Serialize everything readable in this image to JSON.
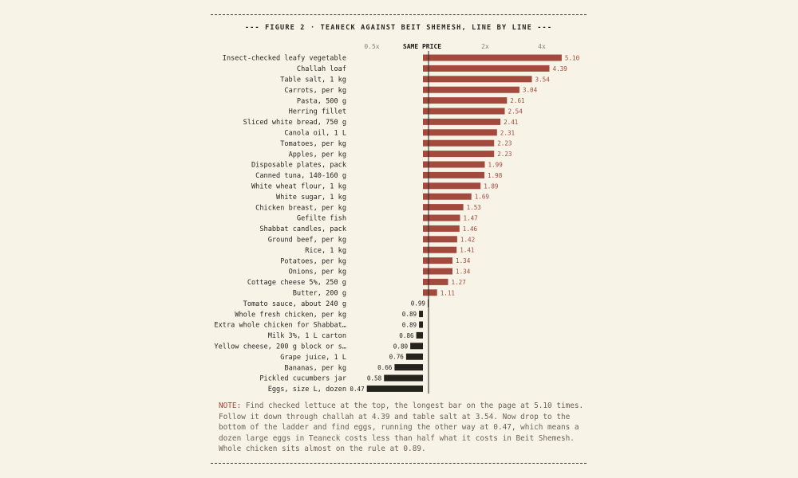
{
  "colors": {
    "background": "#f7f3e6",
    "above_bar": "#a34a3e",
    "below_bar": "#26221d",
    "above_label": "#a34a3e",
    "below_label": "#26221d",
    "text": "#2a2520",
    "note_text": "#6b6258",
    "note_lead": "#a8453a"
  },
  "title": "--- FIGURE 2 · TEANECK AGAINST BEIT SHEMESH, LINE BY LINE ---",
  "note": {
    "lead": "NOTE:",
    "text": " Find checked lettuce at the top, the longest bar on the page at 5.10 times. Follow it down through challah at 4.39 and table salt at 3.54. Now drop to the bottom of the ladder and find eggs, running the other way at 0.47, which means a dozen large eggs in Teaneck costs less than half what it costs in Beit Shemesh. Whole chicken sits almost on the rule at 0.89."
  },
  "chart_data": {
    "type": "bar",
    "orientation": "horizontal",
    "scale": "log2",
    "reference_value": 1,
    "xlim": [
      0.44,
      6
    ],
    "tick_labels": [
      {
        "value": 0.5,
        "label": "0.5x",
        "bold": false
      },
      {
        "value": 1,
        "label": "SAME PRICE",
        "bold": true
      },
      {
        "value": 2,
        "label": "2x",
        "bold": false
      },
      {
        "value": 4,
        "label": "4x",
        "bold": false
      }
    ],
    "categories": [
      "Insect-checked leafy vegetable",
      "Challah loaf",
      "Table salt, 1 kg",
      "Carrots, per kg",
      "Pasta, 500 g",
      "Herring fillet",
      "Sliced white bread, 750 g",
      "Canola oil, 1 L",
      "Tomatoes, per kg",
      "Apples, per kg",
      "Disposable plates, pack",
      "Canned tuna, 140-160 g",
      "White wheat flour, 1 kg",
      "White sugar, 1 kg",
      "Chicken breast, per kg",
      "Gefilte fish",
      "Shabbat candles, pack",
      "Ground beef, per kg",
      "Rice, 1 kg",
      "Potatoes, per kg",
      "Onions, per kg",
      "Cottage cheese 5%, 250 g",
      "Butter, 200 g",
      "Tomato sauce, about 240 g",
      "Whole fresh chicken, per kg",
      "Extra whole chicken for Shabbat…",
      "Milk 3%, 1 L carton",
      "Yellow cheese, 200 g block or s…",
      "Grape juice, 1 L",
      "Bananas, per kg",
      "Pickled cucumbers jar",
      "Eggs, size L, dozen"
    ],
    "values": [
      5.1,
      4.39,
      3.54,
      3.04,
      2.61,
      2.54,
      2.41,
      2.31,
      2.23,
      2.23,
      1.99,
      1.98,
      1.89,
      1.69,
      1.53,
      1.47,
      1.46,
      1.42,
      1.41,
      1.34,
      1.34,
      1.27,
      1.11,
      0.99,
      0.89,
      0.89,
      0.86,
      0.8,
      0.76,
      0.66,
      0.58,
      0.47
    ],
    "value_labels": [
      "5.10",
      "4.39",
      "3.54",
      "3.04",
      "2.61",
      "2.54",
      "2.41",
      "2.31",
      "2.23",
      "2.23",
      "1.99",
      "1.98",
      "1.89",
      "1.69",
      "1.53",
      "1.47",
      "1.46",
      "1.42",
      "1.41",
      "1.34",
      "1.34",
      "1.27",
      "1.11",
      "0.99",
      "0.89",
      "0.89",
      "0.86",
      "0.80",
      "0.76",
      "0.66",
      "0.58",
      "0.47"
    ],
    "title": "--- FIGURE 2 · TEANECK AGAINST BEIT SHEMESH, LINE BY LINE ---",
    "grid": false,
    "legend": "none"
  }
}
